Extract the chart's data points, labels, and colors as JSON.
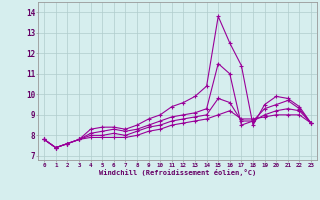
{
  "x": [
    0,
    1,
    2,
    3,
    4,
    5,
    6,
    7,
    8,
    9,
    10,
    11,
    12,
    13,
    14,
    15,
    16,
    17,
    18,
    19,
    20,
    21,
    22,
    23
  ],
  "series": [
    [
      7.8,
      7.4,
      7.6,
      7.8,
      8.3,
      8.4,
      8.4,
      8.3,
      8.5,
      8.8,
      9.0,
      9.4,
      9.6,
      9.9,
      10.4,
      13.8,
      12.5,
      11.4,
      8.5,
      9.5,
      9.9,
      9.8,
      9.4,
      8.6
    ],
    [
      7.8,
      7.4,
      7.6,
      7.8,
      8.1,
      8.2,
      8.3,
      8.2,
      8.3,
      8.5,
      8.7,
      8.9,
      9.0,
      9.1,
      9.3,
      11.5,
      11.0,
      8.5,
      8.7,
      9.3,
      9.5,
      9.7,
      9.3,
      8.6
    ],
    [
      7.8,
      7.4,
      7.6,
      7.8,
      8.0,
      8.0,
      8.1,
      8.0,
      8.2,
      8.4,
      8.5,
      8.7,
      8.8,
      8.9,
      9.0,
      9.8,
      9.6,
      8.7,
      8.7,
      9.0,
      9.2,
      9.3,
      9.2,
      8.6
    ],
    [
      7.8,
      7.4,
      7.6,
      7.8,
      7.9,
      7.9,
      7.9,
      7.9,
      8.0,
      8.2,
      8.3,
      8.5,
      8.6,
      8.7,
      8.8,
      9.0,
      9.2,
      8.8,
      8.8,
      8.9,
      9.0,
      9.0,
      9.0,
      8.6
    ]
  ],
  "line_color": "#990099",
  "marker": "+",
  "markersize": 3,
  "linewidth": 0.8,
  "xlabel": "Windchill (Refroidissement éolien,°C)",
  "ylabel_ticks": [
    7,
    8,
    9,
    10,
    11,
    12,
    13,
    14
  ],
  "ylim": [
    6.8,
    14.5
  ],
  "xlim": [
    -0.5,
    23.5
  ],
  "bg_color": "#d6eeee",
  "grid_color": "#b0cccc",
  "tick_color": "#660066",
  "label_color": "#660066"
}
